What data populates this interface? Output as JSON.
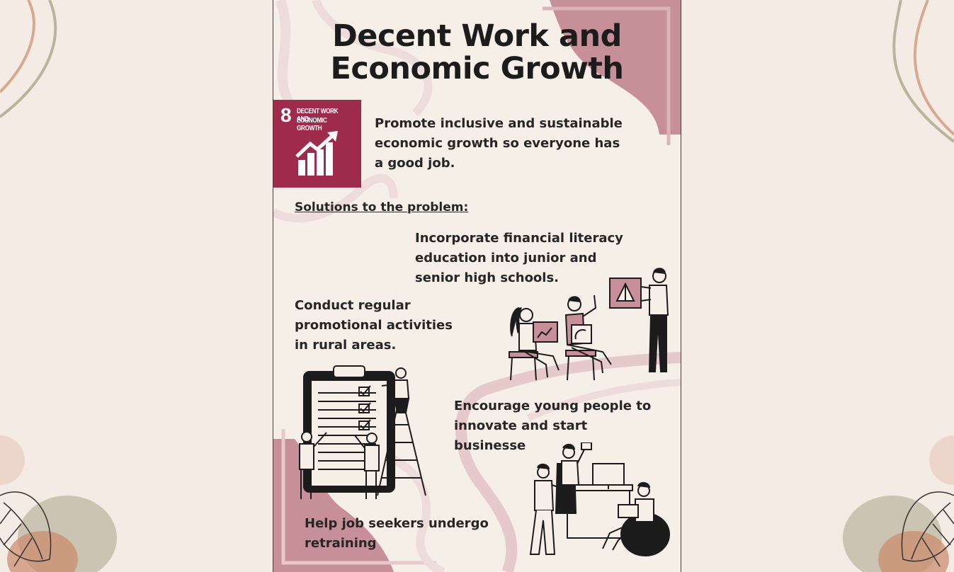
{
  "poster": {
    "title_line1": "Decent Work and",
    "title_line2": "Economic Growth",
    "sdg": {
      "number": "8",
      "label_line1": "DECENT WORK AND",
      "label_line2": "ECONOMIC GROWTH",
      "icon": "rising-bar-chart-icon",
      "color": "#9e2b4b"
    },
    "goal_lines": [
      "Promote inclusive and sustainable",
      "economic growth so everyone has",
      "a good job."
    ],
    "solutions_heading": "Solutions to the problem:",
    "solution1_lines": [
      "Incorporate financial literacy",
      "education into junior and",
      "senior high schools."
    ],
    "solution2_lines": [
      "Conduct regular",
      "promotional activities",
      "in rural areas."
    ],
    "solution3_lines": [
      "Encourage young people to",
      "innovate and start",
      "businesse"
    ],
    "solution4_lines": [
      "Help job seekers undergo",
      "retraining"
    ]
  },
  "colors": {
    "page_background": "#f4ece4",
    "poster_background": "#f6efe8",
    "accent_rose": "#c78f98",
    "text": "#262626"
  }
}
